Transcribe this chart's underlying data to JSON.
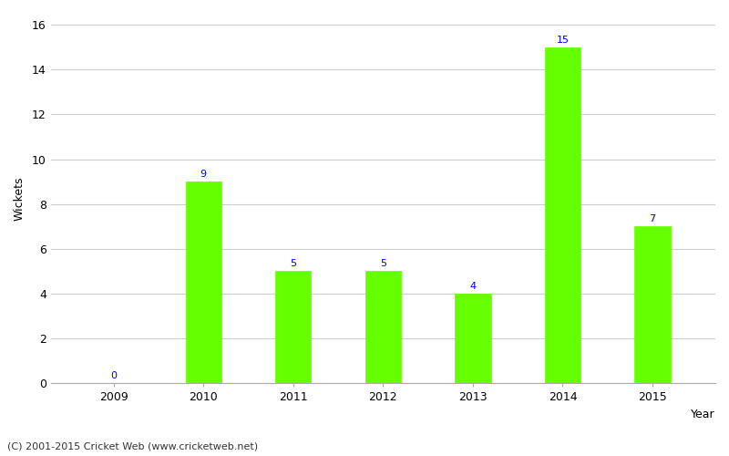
{
  "years": [
    "2009",
    "2010",
    "2011",
    "2012",
    "2013",
    "2014",
    "2015"
  ],
  "wickets": [
    0,
    9,
    5,
    5,
    4,
    15,
    7
  ],
  "bar_color": "#66ff00",
  "bar_edgecolor": "#66ff00",
  "label_color": "#0000cc",
  "xlabel": "Year",
  "ylabel": "Wickets",
  "ylim": [
    0,
    16.5
  ],
  "yticks": [
    0,
    2,
    4,
    6,
    8,
    10,
    12,
    14,
    16
  ],
  "footnote": "(C) 2001-2015 Cricket Web (www.cricketweb.net)",
  "background_color": "#ffffff",
  "grid_color": "#cccccc",
  "label_fontsize": 8,
  "axis_fontsize": 9,
  "footnote_fontsize": 8,
  "bar_width": 0.4
}
